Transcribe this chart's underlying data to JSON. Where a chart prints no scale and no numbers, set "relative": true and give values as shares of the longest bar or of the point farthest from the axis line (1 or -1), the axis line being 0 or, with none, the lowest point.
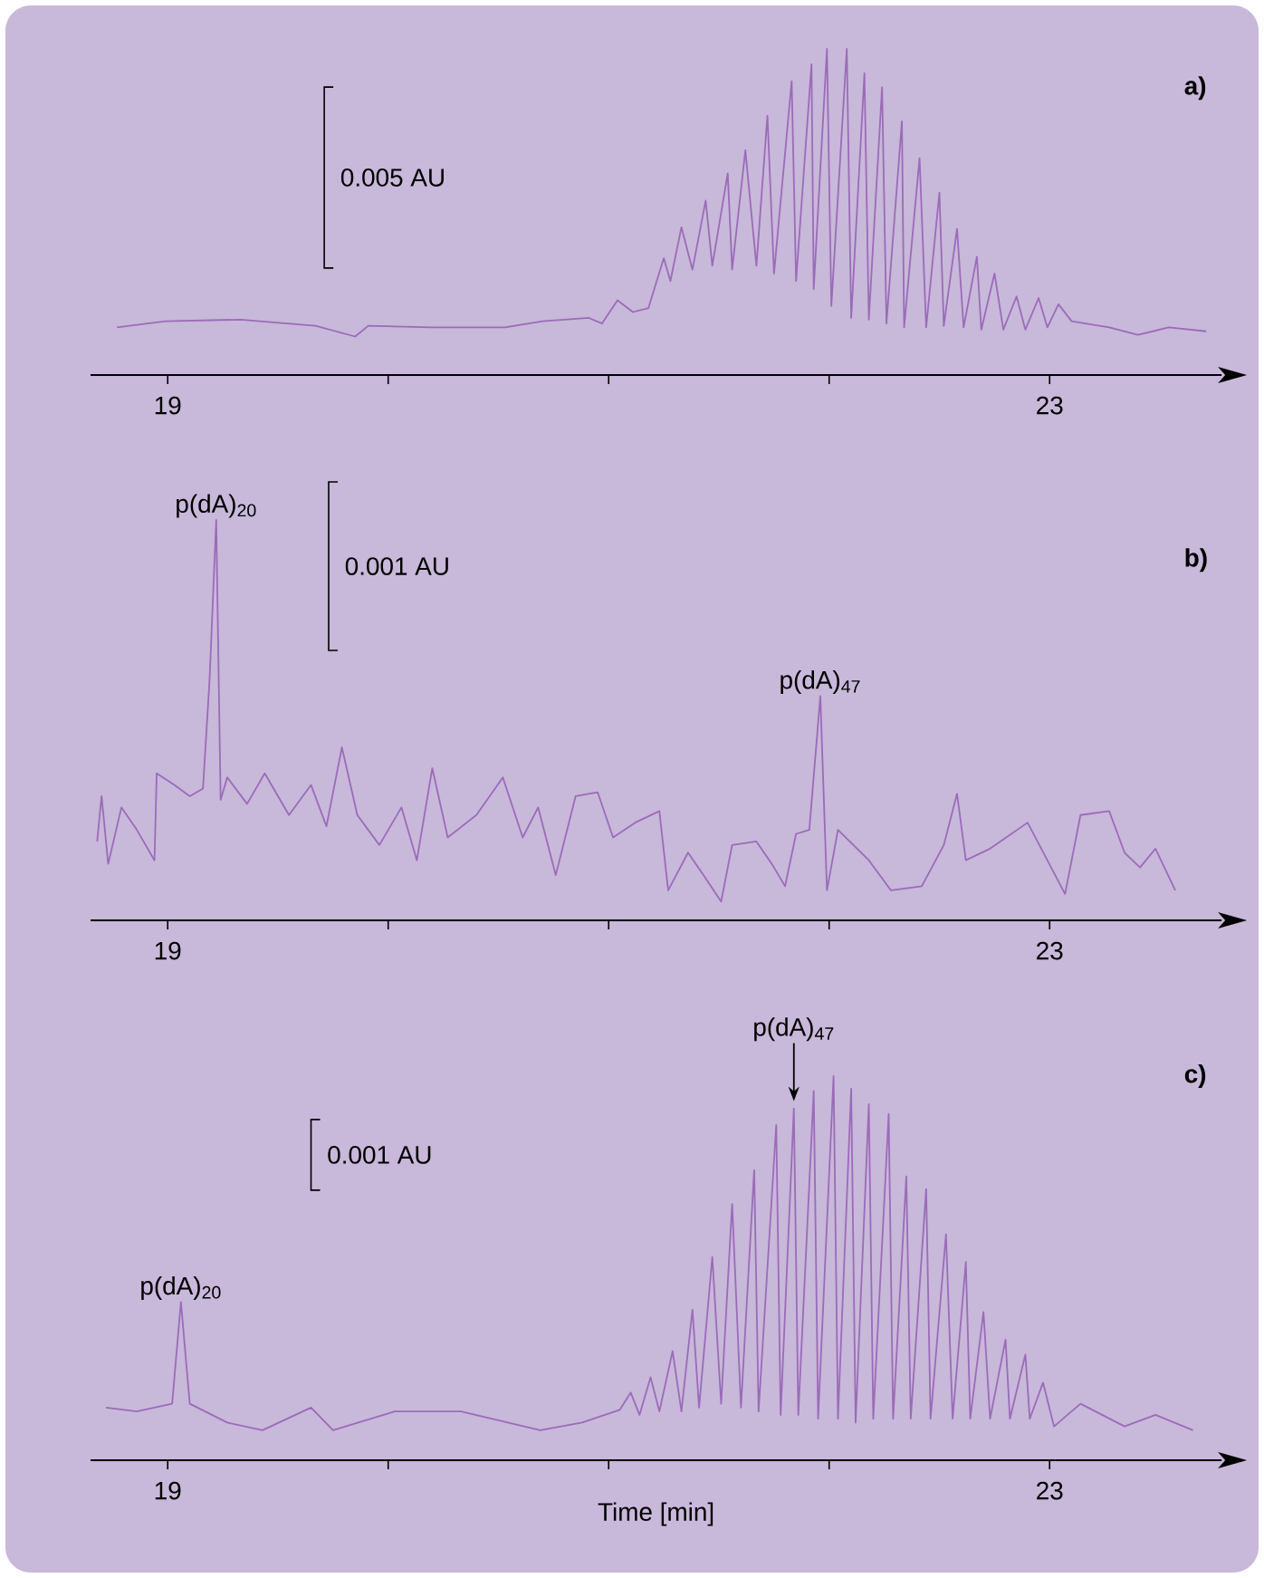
{
  "chart_data": [
    {
      "type": "line",
      "relative": true,
      "color": "#9a6cb8",
      "xlim": [
        18.65,
        23.78
      ],
      "xticks": [
        19,
        {
          "value": 20,
          "label": null
        },
        {
          "value": 21,
          "label": null
        },
        {
          "value": 22,
          "label": null
        },
        23
      ],
      "x": [
        18.77,
        18.99,
        19.33,
        19.67,
        19.85,
        19.91,
        20.19,
        20.53,
        20.7,
        20.91,
        20.97,
        21.04,
        21.11,
        21.18,
        21.25,
        21.28,
        21.33,
        21.38,
        21.44,
        21.47,
        21.54,
        21.56,
        21.62,
        21.67,
        21.72,
        21.75,
        21.83,
        21.85,
        21.92,
        21.93,
        21.99,
        22.01,
        22.08,
        22.1,
        22.16,
        22.18,
        22.24,
        22.26,
        22.33,
        22.34,
        22.41,
        22.44,
        22.5,
        22.52,
        22.58,
        22.61,
        22.67,
        22.69,
        22.75,
        22.79,
        22.85,
        22.89,
        22.95,
        22.99,
        23.04,
        23.1,
        23.27,
        23.4,
        23.54,
        23.71
      ],
      "values": [
        0.146,
        0.165,
        0.17,
        0.151,
        0.118,
        0.151,
        0.146,
        0.146,
        0.165,
        0.175,
        0.158,
        0.229,
        0.193,
        0.205,
        0.358,
        0.288,
        0.453,
        0.323,
        0.535,
        0.335,
        0.618,
        0.323,
        0.689,
        0.335,
        0.795,
        0.311,
        0.901,
        0.288,
        0.953,
        0.264,
        1.0,
        0.212,
        1.0,
        0.175,
        0.925,
        0.17,
        0.882,
        0.158,
        0.778,
        0.146,
        0.665,
        0.146,
        0.559,
        0.151,
        0.448,
        0.146,
        0.363,
        0.139,
        0.311,
        0.139,
        0.241,
        0.139,
        0.236,
        0.146,
        0.217,
        0.165,
        0.146,
        0.123,
        0.146,
        0.134
      ],
      "annotations": [
        "0.005 AU",
        "a)"
      ]
    },
    {
      "type": "line",
      "relative": true,
      "color": "#9a6cb8",
      "xlim": [
        18.65,
        23.78
      ],
      "xticks": [
        19,
        {
          "value": 20,
          "label": null
        },
        {
          "value": 21,
          "label": null
        },
        {
          "value": 22,
          "label": null
        },
        23
      ],
      "x": [
        18.68,
        18.7,
        18.73,
        18.79,
        18.86,
        18.94,
        18.95,
        19.03,
        19.1,
        19.16,
        19.19,
        19.22,
        19.24,
        19.27,
        19.36,
        19.44,
        19.55,
        19.65,
        19.72,
        19.79,
        19.86,
        19.96,
        20.06,
        20.13,
        20.2,
        20.27,
        20.4,
        20.52,
        20.61,
        20.68,
        20.76,
        20.85,
        20.95,
        21.02,
        21.12,
        21.23,
        21.27,
        21.36,
        21.43,
        21.51,
        21.56,
        21.67,
        21.74,
        21.8,
        21.85,
        21.91,
        21.96,
        21.99,
        22.04,
        22.18,
        22.28,
        22.42,
        22.52,
        22.58,
        22.62,
        22.73,
        22.9,
        23.07,
        23.14,
        23.27,
        23.34,
        23.41,
        23.48,
        23.57
      ],
      "values": [
        0.197,
        0.31,
        0.141,
        0.282,
        0.226,
        0.15,
        0.367,
        0.338,
        0.31,
        0.329,
        0.602,
        1.0,
        0.301,
        0.357,
        0.291,
        0.367,
        0.263,
        0.338,
        0.235,
        0.432,
        0.263,
        0.188,
        0.282,
        0.15,
        0.38,
        0.207,
        0.263,
        0.357,
        0.207,
        0.282,
        0.113,
        0.31,
        0.32,
        0.207,
        0.244,
        0.273,
        0.075,
        0.169,
        0.113,
        0.047,
        0.188,
        0.197,
        0.141,
        0.085,
        0.216,
        0.226,
        0.56,
        0.075,
        0.226,
        0.15,
        0.075,
        0.085,
        0.188,
        0.316,
        0.15,
        0.179,
        0.244,
        0.066,
        0.263,
        0.273,
        0.169,
        0.132,
        0.179,
        0.075
      ],
      "annotations": [
        "0.001 AU",
        "b)",
        {
          "text": "p(dA)$_{20}$",
          "x": 19.22,
          "y": 1.0
        },
        {
          "text": "p(dA)$_{47}$",
          "x": 21.96,
          "y": 0.56
        }
      ]
    },
    {
      "type": "line",
      "relative": true,
      "color": "#9a6cb8",
      "xlim": [
        18.65,
        23.78
      ],
      "xticks": [
        19,
        {
          "value": 20,
          "label": null
        },
        {
          "value": 21,
          "label": null
        },
        {
          "value": 22,
          "label": null
        },
        23
      ],
      "xlabel": "Time [min]",
      "x": [
        18.72,
        18.86,
        19.02,
        19.06,
        19.1,
        19.27,
        19.43,
        19.65,
        19.75,
        20.03,
        20.33,
        20.69,
        20.88,
        21.05,
        21.1,
        21.14,
        21.19,
        21.23,
        21.29,
        21.33,
        21.38,
        21.41,
        21.47,
        21.51,
        21.56,
        21.6,
        21.66,
        21.68,
        21.76,
        21.78,
        21.84,
        21.86,
        21.93,
        21.95,
        22.02,
        22.04,
        22.1,
        22.12,
        22.18,
        22.2,
        22.27,
        22.29,
        22.35,
        22.37,
        22.44,
        22.46,
        22.53,
        22.56,
        22.62,
        22.64,
        22.7,
        22.73,
        22.8,
        22.82,
        22.89,
        22.91,
        22.97,
        23.02,
        23.14,
        23.34,
        23.48,
        23.65
      ],
      "values": [
        0.137,
        0.127,
        0.147,
        0.412,
        0.147,
        0.098,
        0.078,
        0.137,
        0.078,
        0.127,
        0.127,
        0.078,
        0.098,
        0.131,
        0.176,
        0.118,
        0.216,
        0.127,
        0.284,
        0.127,
        0.392,
        0.137,
        0.529,
        0.147,
        0.667,
        0.137,
        0.755,
        0.127,
        0.873,
        0.118,
        0.916,
        0.118,
        0.961,
        0.108,
        1.0,
        0.108,
        0.967,
        0.098,
        0.927,
        0.108,
        0.902,
        0.108,
        0.739,
        0.108,
        0.706,
        0.108,
        0.588,
        0.108,
        0.516,
        0.108,
        0.386,
        0.108,
        0.314,
        0.108,
        0.275,
        0.108,
        0.202,
        0.088,
        0.147,
        0.088,
        0.118,
        0.078
      ],
      "annotations": [
        "0.001 AU",
        "c)",
        {
          "text": "p(dA)$_{20}$",
          "x": 19.06,
          "y": 0.412
        },
        {
          "text": "p(dA)$_{47}$",
          "x": 21.84,
          "y": 0.916
        }
      ]
    }
  ]
}
